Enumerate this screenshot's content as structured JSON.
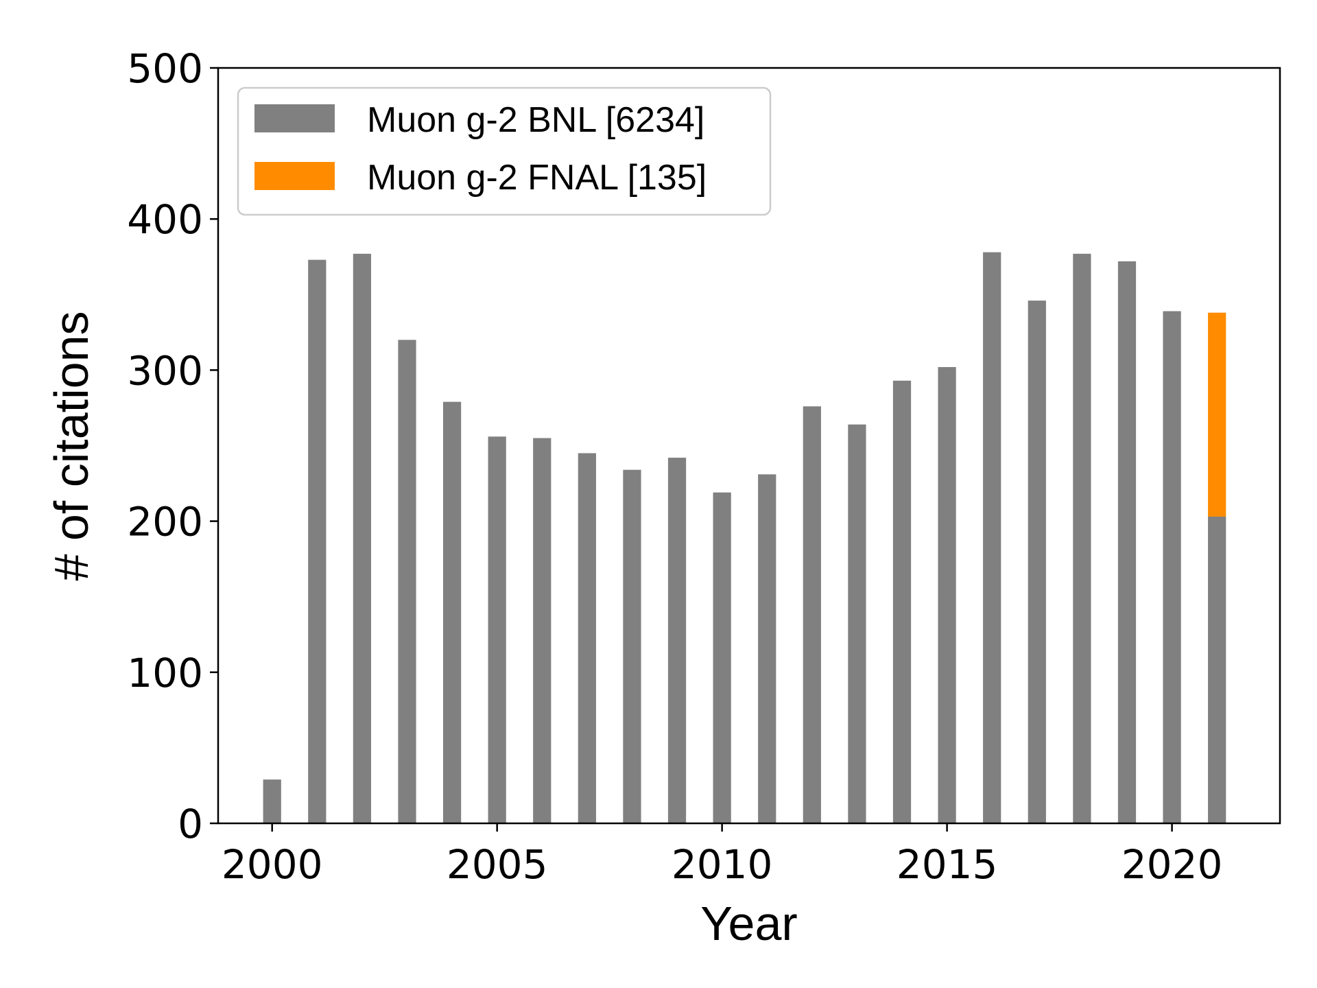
{
  "chart_data": {
    "type": "bar",
    "stacked": true,
    "title": "",
    "xlabel": "Year",
    "ylabel": "# of citations",
    "xlim": [
      1998.8,
      2022.4
    ],
    "ylim": [
      0,
      500
    ],
    "xticks": [
      2000,
      2005,
      2010,
      2015,
      2020
    ],
    "yticks": [
      0,
      100,
      200,
      300,
      400,
      500
    ],
    "grid": false,
    "legend_position": "top-left",
    "x": [
      2000,
      2001,
      2002,
      2003,
      2004,
      2005,
      2006,
      2007,
      2008,
      2009,
      2010,
      2011,
      2012,
      2013,
      2014,
      2015,
      2016,
      2017,
      2018,
      2019,
      2020,
      2021
    ],
    "series": [
      {
        "name": "Muon g-2 BNL [6234]",
        "color": "#808080",
        "values": [
          29,
          373,
          377,
          320,
          279,
          256,
          255,
          245,
          234,
          242,
          219,
          231,
          276,
          264,
          293,
          302,
          378,
          346,
          377,
          372,
          339,
          203
        ]
      },
      {
        "name": "Muon g-2 FNAL [135]",
        "color": "#ff8c00",
        "values": [
          0,
          0,
          0,
          0,
          0,
          0,
          0,
          0,
          0,
          0,
          0,
          0,
          0,
          0,
          0,
          0,
          0,
          0,
          0,
          0,
          0,
          135
        ]
      }
    ]
  }
}
